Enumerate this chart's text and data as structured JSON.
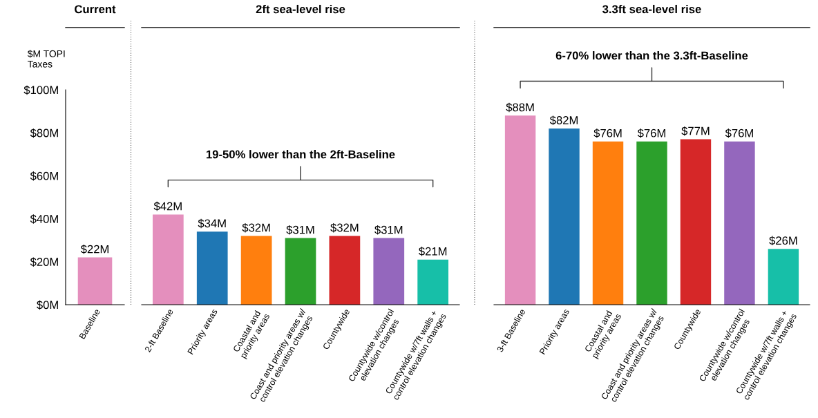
{
  "chart_data": [
    {
      "type": "bar",
      "title": "Current",
      "ylabel": "$M TOPI\nTaxes",
      "categories": [
        "Baseline"
      ],
      "values": [
        22
      ],
      "colors": [
        "#e48fbd"
      ],
      "value_labels": [
        "$22M"
      ],
      "ylim": [
        0,
        100
      ],
      "yticks": [
        {
          "value": 0,
          "label": "$0M"
        },
        {
          "value": 20,
          "label": "$20M"
        },
        {
          "value": 40,
          "label": "$40M"
        },
        {
          "value": 60,
          "label": "$60M"
        },
        {
          "value": 80,
          "label": "$80M"
        },
        {
          "value": 100,
          "label": "$100M"
        }
      ],
      "grid": false,
      "legend": false
    },
    {
      "type": "bar",
      "title": "2ft sea-level rise",
      "categories": [
        "2-ft Baseline",
        "Priority areas",
        "Coastal and\npriority areas",
        "Coast and priority areas w/\ncontrol elevation changes",
        "Countywide",
        "Countywide w/control\nelevation changes",
        "Countywide w/7ft walls +\ncontrol elevation changes"
      ],
      "values": [
        42,
        34,
        32,
        31,
        32,
        31,
        21
      ],
      "colors": [
        "#e48fbd",
        "#1f77b4",
        "#ff7f0e",
        "#2ca02c",
        "#d62728",
        "#9467bd",
        "#17bfa8"
      ],
      "value_labels": [
        "$42M",
        "$34M",
        "$32M",
        "$31M",
        "$32M",
        "$31M",
        "$21M"
      ],
      "annotations": [
        "19-50% lower than the 2ft-Baseline"
      ],
      "ylim": [
        0,
        100
      ],
      "tick_labels": "x",
      "grid": false,
      "legend": false
    },
    {
      "type": "bar",
      "title": "3.3ft sea-level rise",
      "categories": [
        "3-ft Baseline",
        "Priority areas",
        "Coastal and\npriority areas",
        "Coast and priority areas w/\ncontrol elevation changes",
        "Countywide",
        "Countywide w/control\nelevation changes",
        "Countywide w/7ft walls +\ncontrol elevation changes"
      ],
      "values": [
        88,
        82,
        76,
        76,
        77,
        76,
        26
      ],
      "colors": [
        "#e48fbd",
        "#1f77b4",
        "#ff7f0e",
        "#2ca02c",
        "#d62728",
        "#9467bd",
        "#17bfa8"
      ],
      "value_labels": [
        "$88M",
        "$82M",
        "$76M",
        "$76M",
        "$77M",
        "$76M",
        "$26M"
      ],
      "annotations": [
        "6-70% lower than the 3.3ft-Baseline"
      ],
      "ylim": [
        0,
        100
      ],
      "tick_labels": "x",
      "grid": false,
      "legend": false
    }
  ]
}
